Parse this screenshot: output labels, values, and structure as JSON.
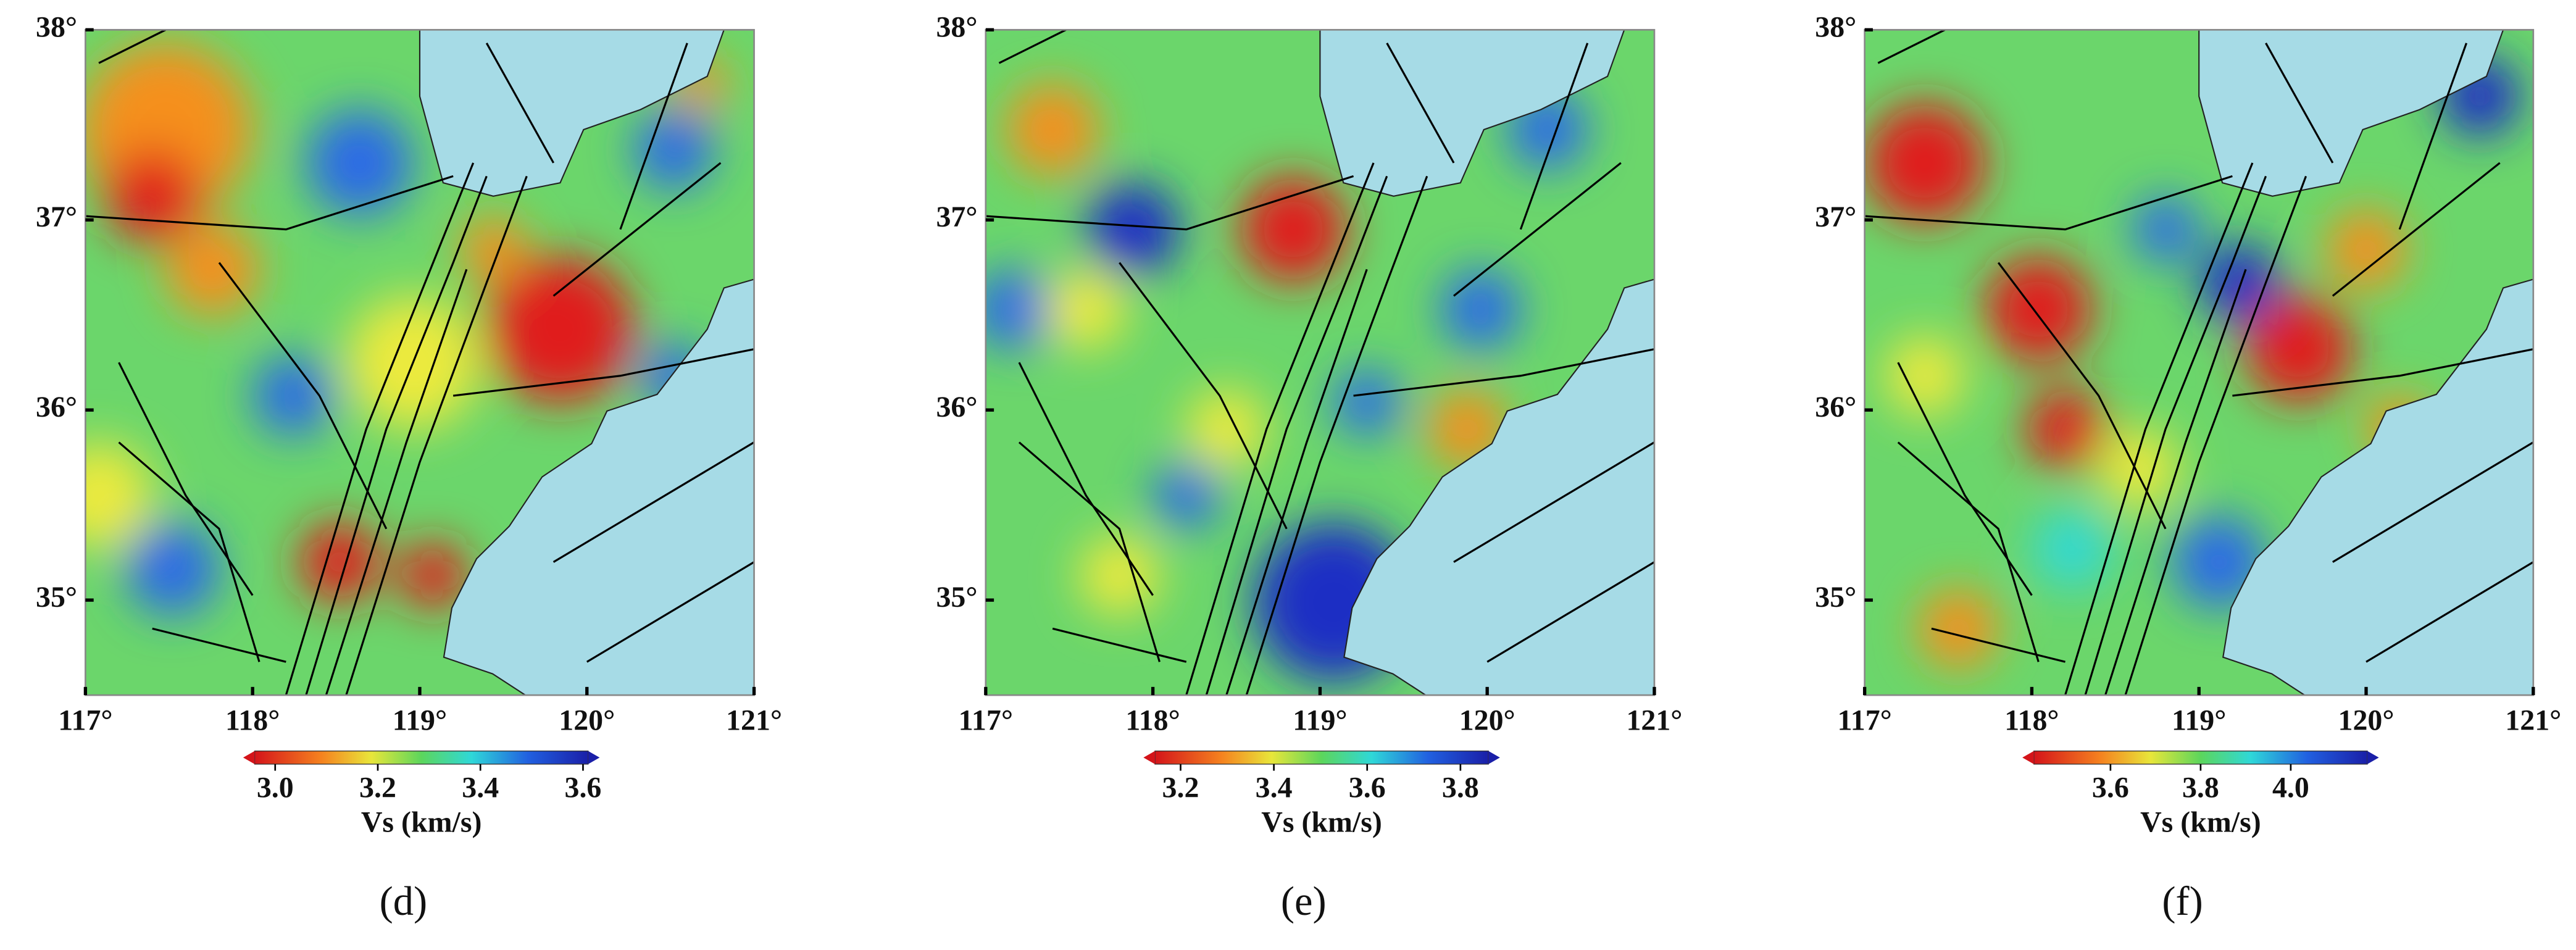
{
  "panels": [
    {
      "label": "(d)",
      "lon_range": [
        117,
        121
      ],
      "lat_range": [
        34.5,
        38
      ],
      "lon_ticks": [
        {
          "value": 117,
          "label": "117°"
        },
        {
          "value": 118,
          "label": "118°"
        },
        {
          "value": 119,
          "label": "119°"
        },
        {
          "value": 120,
          "label": "120°"
        },
        {
          "value": 121,
          "label": "121°"
        }
      ],
      "lat_ticks": [
        {
          "value": 35,
          "label": "35°"
        },
        {
          "value": 36,
          "label": "36°"
        },
        {
          "value": 37,
          "label": "37°"
        },
        {
          "value": 38,
          "label": "38°"
        }
      ],
      "colorbar": {
        "title": "Vs (km/s)",
        "range": [
          2.96,
          3.61
        ],
        "ticks": [
          {
            "value": 3.0,
            "label": "3.0"
          },
          {
            "value": 3.2,
            "label": "3.2"
          },
          {
            "value": 3.4,
            "label": "3.4"
          },
          {
            "value": 3.6,
            "label": "3.6"
          }
        ]
      }
    },
    {
      "label": "(e)",
      "lon_range": [
        117,
        121
      ],
      "lat_range": [
        34.5,
        38
      ],
      "lon_ticks": [
        {
          "value": 117,
          "label": "117°"
        },
        {
          "value": 118,
          "label": "118°"
        },
        {
          "value": 119,
          "label": "119°"
        },
        {
          "value": 120,
          "label": "120°"
        },
        {
          "value": 121,
          "label": "121°"
        }
      ],
      "lat_ticks": [
        {
          "value": 35,
          "label": "35°"
        },
        {
          "value": 36,
          "label": "36°"
        },
        {
          "value": 37,
          "label": "37°"
        },
        {
          "value": 38,
          "label": "38°"
        }
      ],
      "colorbar": {
        "title": "Vs (km/s)",
        "range": [
          3.145,
          3.86
        ],
        "ticks": [
          {
            "value": 3.2,
            "label": "3.2"
          },
          {
            "value": 3.4,
            "label": "3.4"
          },
          {
            "value": 3.6,
            "label": "3.6"
          },
          {
            "value": 3.8,
            "label": "3.8"
          }
        ]
      }
    },
    {
      "label": "(f)",
      "lon_range": [
        117,
        121
      ],
      "lat_range": [
        34.5,
        38
      ],
      "lon_ticks": [
        {
          "value": 117,
          "label": "117°"
        },
        {
          "value": 118,
          "label": "118°"
        },
        {
          "value": 119,
          "label": "119°"
        },
        {
          "value": 120,
          "label": "120°"
        },
        {
          "value": 121,
          "label": "121°"
        }
      ],
      "lat_ticks": [
        {
          "value": 35,
          "label": "35°"
        },
        {
          "value": 36,
          "label": "36°"
        },
        {
          "value": 37,
          "label": "37°"
        },
        {
          "value": 38,
          "label": "38°"
        }
      ],
      "colorbar": {
        "title": "Vs (km/s)",
        "range": [
          3.43,
          4.17
        ],
        "ticks": [
          {
            "value": 3.6,
            "label": "3.6"
          },
          {
            "value": 3.8,
            "label": "3.8"
          },
          {
            "value": 4.0,
            "label": "4.0"
          }
        ]
      }
    }
  ]
}
